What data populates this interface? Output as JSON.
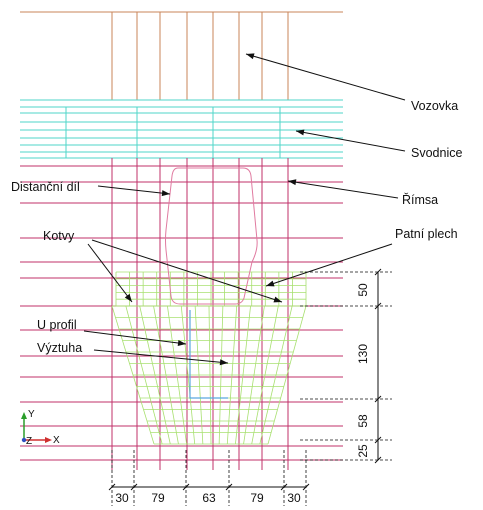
{
  "colors": {
    "deck": "#c8845a",
    "slab": "#4fd6c8",
    "rail": "#c0306a",
    "mesh": "#a8e070",
    "spacer": "#e07aa0",
    "uprofile": "#5aa8e0",
    "leader": "#111111",
    "dimension": "#111111"
  },
  "labels": {
    "vozovka": "Vozovka",
    "svodnice": "Svodnice",
    "distancni_dil": "Distanční díl",
    "rimsa": "Římsa",
    "kotvy": "Kotvy",
    "patni_plech": "Patní plech",
    "u_profil": "U profil",
    "vyztuha": "Výztuha"
  },
  "dimensions": {
    "horizontal": [
      "30",
      "79",
      "63",
      "79",
      "30"
    ],
    "vertical": [
      "50",
      "130",
      "58",
      "25"
    ]
  },
  "axes": {
    "y": "Y",
    "z": "Z",
    "x": "X"
  }
}
